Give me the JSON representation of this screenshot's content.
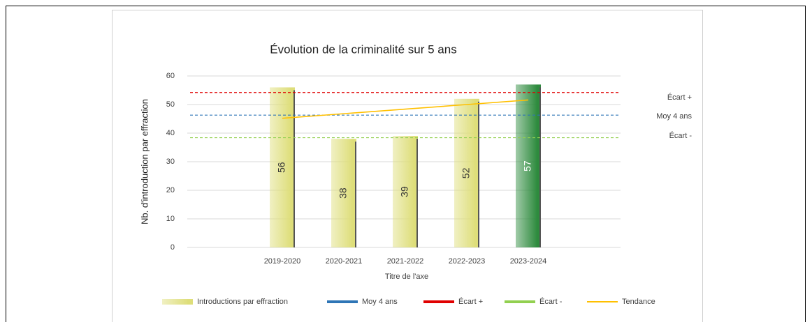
{
  "chart_data": {
    "type": "bar",
    "title": "Évolution de la criminalité sur 5 ans",
    "x_label": "Titre de l'axe",
    "y_label": "Nb. d'introduction par effraction",
    "categories": [
      null,
      "2019-2020",
      "2020-2021",
      "2021-2022",
      "2022-2023",
      "2023-2024",
      null
    ],
    "series": [
      {
        "name": "Introductions par effraction",
        "type": "bar",
        "color": "#dede7a",
        "colors": [
          null,
          "#dede7a",
          "#dede7a",
          "#dede7a",
          "#dede7a",
          "#2e8b3e",
          null
        ],
        "values": [
          null,
          56,
          38,
          39,
          52,
          57,
          null
        ]
      },
      {
        "name": "Moy 4 ans",
        "type": "line",
        "dashed": true,
        "color": "#2e75b6",
        "values": [
          46.3,
          46.3,
          46.3,
          46.3,
          46.3,
          46.3,
          46.3
        ]
      },
      {
        "name": "Écart +",
        "type": "line",
        "dashed": true,
        "color": "#e00000",
        "values": [
          54.2,
          54.2,
          54.2,
          54.2,
          54.2,
          54.2,
          54.2
        ]
      },
      {
        "name": "Écart -",
        "type": "line",
        "dashed": true,
        "color": "#92d050",
        "values": [
          38.4,
          38.4,
          38.4,
          38.4,
          38.4,
          38.4,
          38.4
        ]
      },
      {
        "name": "Tendance",
        "type": "line",
        "dashed": false,
        "color": "#ffc000",
        "values": [
          null,
          45.2,
          46.8,
          48.4,
          50,
          51.6,
          null
        ]
      }
    ],
    "ylim": [
      0,
      60
    ],
    "yticks": [
      0,
      10,
      20,
      30,
      40,
      50,
      60
    ],
    "grid": true
  }
}
